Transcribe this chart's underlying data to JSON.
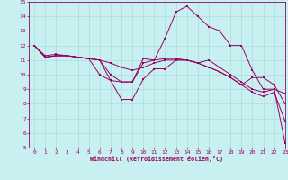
{
  "xlabel": "Windchill (Refroidissement éolien,°C)",
  "ylabel": "",
  "xlim": [
    -0.5,
    23
  ],
  "ylim": [
    5,
    15
  ],
  "yticks": [
    5,
    6,
    7,
    8,
    9,
    10,
    11,
    12,
    13,
    14,
    15
  ],
  "xticks": [
    0,
    1,
    2,
    3,
    4,
    5,
    6,
    7,
    8,
    9,
    10,
    11,
    12,
    13,
    14,
    15,
    16,
    17,
    18,
    19,
    20,
    21,
    22,
    23
  ],
  "bg_color": "#c8f0f0",
  "line_color": "#990066",
  "grid_color": "#aadddd",
  "lines": [
    {
      "x": [
        0,
        1,
        2,
        3,
        4,
        5,
        6,
        7,
        8,
        9,
        10,
        11,
        12,
        13,
        14,
        15,
        16,
        17,
        18,
        19,
        20,
        21,
        22,
        23
      ],
      "y": [
        12,
        11.2,
        11.3,
        11.3,
        11.2,
        11.1,
        10.0,
        9.6,
        8.3,
        8.3,
        9.7,
        10.4,
        10.4,
        11.0,
        11.0,
        10.8,
        11.0,
        10.5,
        10.0,
        9.5,
        9.0,
        8.8,
        9.0,
        8.7
      ]
    },
    {
      "x": [
        0,
        1,
        2,
        3,
        4,
        5,
        6,
        7,
        8,
        9,
        10,
        11,
        12,
        13,
        14,
        15,
        16,
        17,
        18,
        19,
        20,
        21,
        22,
        23
      ],
      "y": [
        12,
        11.3,
        11.4,
        11.3,
        11.2,
        11.1,
        11.0,
        9.6,
        9.5,
        9.5,
        11.1,
        11.0,
        12.5,
        14.3,
        14.7,
        14.0,
        13.3,
        13.0,
        12.0,
        12.0,
        10.3,
        9.0,
        9.0,
        5.3
      ]
    },
    {
      "x": [
        0,
        1,
        2,
        3,
        4,
        5,
        6,
        7,
        8,
        9,
        10,
        11,
        12,
        13,
        14,
        15,
        16,
        17,
        18,
        19,
        20,
        21,
        22,
        23
      ],
      "y": [
        12,
        11.2,
        11.3,
        11.3,
        11.2,
        11.1,
        11.0,
        10.0,
        9.5,
        9.5,
        10.8,
        11.0,
        11.1,
        11.1,
        11.0,
        10.8,
        10.5,
        10.2,
        9.8,
        9.3,
        8.8,
        8.5,
        8.8,
        6.8
      ]
    },
    {
      "x": [
        0,
        1,
        2,
        3,
        4,
        5,
        6,
        7,
        8,
        9,
        10,
        11,
        12,
        13,
        14,
        15,
        16,
        17,
        18,
        19,
        20,
        21,
        22,
        23
      ],
      "y": [
        12,
        11.2,
        11.3,
        11.3,
        11.2,
        11.1,
        11.0,
        10.8,
        10.5,
        10.3,
        10.5,
        10.8,
        11.0,
        11.0,
        11.0,
        10.8,
        10.5,
        10.2,
        9.8,
        9.3,
        9.8,
        9.8,
        9.3,
        8.0
      ]
    }
  ]
}
